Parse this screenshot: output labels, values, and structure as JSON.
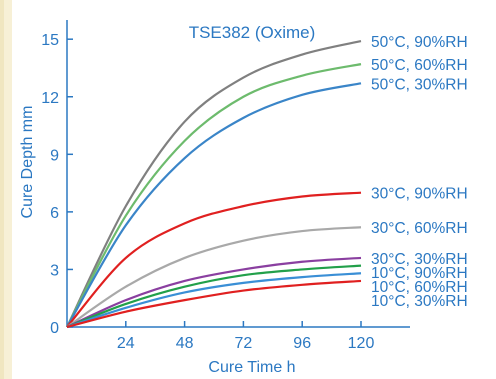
{
  "chart_data": {
    "type": "line",
    "title": "TSE382 (Oxime)",
    "xlabel": "Cure Time  h",
    "ylabel": "Cure Depth  mm",
    "xlim": [
      0,
      140
    ],
    "ylim": [
      0,
      16
    ],
    "xticks": [
      24,
      48,
      72,
      96,
      120
    ],
    "yticks": [
      0,
      3,
      6,
      9,
      12,
      15
    ],
    "grid": false,
    "legend": "inline-right",
    "x": [
      0,
      24,
      48,
      72,
      96,
      120
    ],
    "series": [
      {
        "name": "50°C, 90%RH",
        "color": "#808080",
        "values": [
          0,
          6.3,
          10.7,
          13.0,
          14.2,
          14.9
        ]
      },
      {
        "name": "50°C, 60%RH",
        "color": "#6dbb6d",
        "values": [
          0,
          5.8,
          9.7,
          12.0,
          13.1,
          13.7
        ]
      },
      {
        "name": "50°C, 30%RH",
        "color": "#3a85c8",
        "values": [
          0,
          5.3,
          8.8,
          10.9,
          12.1,
          12.7
        ]
      },
      {
        "name": "30°C, 90%RH",
        "color": "#e02020",
        "values": [
          0,
          3.6,
          5.4,
          6.3,
          6.8,
          7.0
        ]
      },
      {
        "name": "30°C, 60%RH",
        "color": "#a9a9a9",
        "values": [
          0,
          2.1,
          3.6,
          4.5,
          5.0,
          5.2
        ]
      },
      {
        "name": "30°C, 30%RH",
        "color": "#8a3fa0",
        "values": [
          0,
          1.4,
          2.4,
          3.0,
          3.4,
          3.6
        ]
      },
      {
        "name": "10°C, 90%RH",
        "color": "#22a04a",
        "values": [
          0,
          1.2,
          2.1,
          2.7,
          3.0,
          3.2
        ]
      },
      {
        "name": "10°C, 60%RH",
        "color": "#3a8fd6",
        "values": [
          0,
          1.0,
          1.8,
          2.3,
          2.6,
          2.8
        ]
      },
      {
        "name": "10°C, 30%RH",
        "color": "#e02020",
        "values": [
          0,
          0.8,
          1.4,
          1.9,
          2.2,
          2.4
        ]
      }
    ]
  }
}
